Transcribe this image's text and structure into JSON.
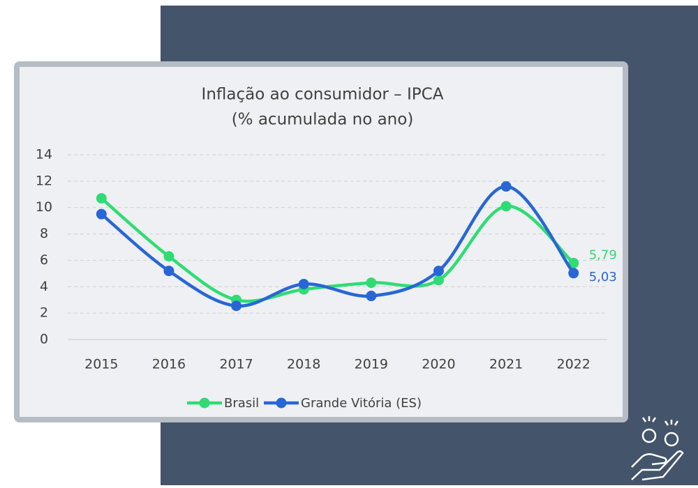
{
  "chart_data": {
    "type": "line",
    "title": "Inflação ao consumidor – IPCA",
    "subtitle": "(% acumulada no ano)",
    "categories": [
      "2015",
      "2016",
      "2017",
      "2018",
      "2019",
      "2020",
      "2021",
      "2022"
    ],
    "series": [
      {
        "name": "Brasil",
        "color": "#2fdc74",
        "values": [
          10.7,
          6.3,
          3.0,
          3.8,
          4.3,
          4.5,
          10.1,
          5.79
        ],
        "value_labels": [
          null,
          null,
          null,
          null,
          null,
          null,
          null,
          "5,79"
        ]
      },
      {
        "name": "Grande Vitória (ES)",
        "color": "#2866d6",
        "values": [
          9.5,
          5.2,
          2.55,
          4.2,
          3.3,
          5.2,
          11.6,
          5.03
        ],
        "value_labels": [
          null,
          null,
          null,
          null,
          null,
          null,
          null,
          "5,03"
        ]
      }
    ],
    "ylim": [
      0,
      14
    ],
    "yticks": [
      0,
      2,
      4,
      6,
      8,
      10,
      12,
      14
    ],
    "grid": true,
    "legend": "bottom"
  }
}
